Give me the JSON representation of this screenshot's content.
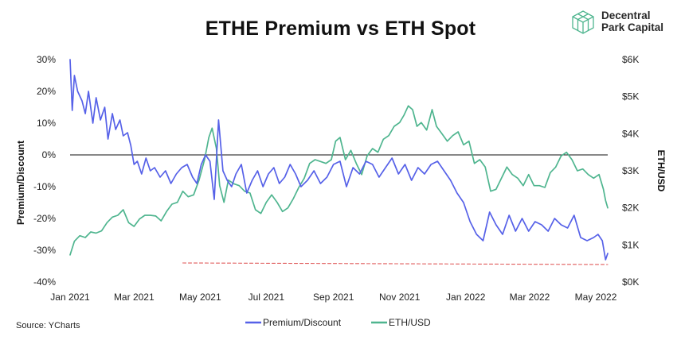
{
  "chart_data": {
    "type": "line",
    "title": "ETHE Premium vs ETH Spot",
    "ylabel_left": "Premium/Discount",
    "ylabel_right": "ETH/USD",
    "x_ticks": [
      "Jan 2021",
      "Mar 2021",
      "May 2021",
      "Jul 2021",
      "Sep 2021",
      "Nov 2021",
      "Jan 2022",
      "Mar 2022",
      "May 2022"
    ],
    "x_range": [
      "2021-01-01",
      "2022-05-12"
    ],
    "y_left_ticks": [
      "30%",
      "20%",
      "10%",
      "0%",
      "-10%",
      "-20%",
      "-30%",
      "-40%"
    ],
    "y_left_range": [
      -40,
      30
    ],
    "y_right_ticks": [
      "$6K",
      "$5K",
      "$4K",
      "$3K",
      "$2K",
      "$1K",
      "$0K"
    ],
    "y_right_range": [
      0,
      6000
    ],
    "grid": false,
    "zero_line": true,
    "legend_position": "bottom",
    "series": [
      {
        "name": "Premium/Discount",
        "axis": "left",
        "color": "#5661e8",
        "x": [
          "2021-01-01",
          "2021-01-03",
          "2021-01-05",
          "2021-01-08",
          "2021-01-12",
          "2021-01-15",
          "2021-01-18",
          "2021-01-22",
          "2021-01-25",
          "2021-01-29",
          "2021-02-02",
          "2021-02-05",
          "2021-02-09",
          "2021-02-12",
          "2021-02-16",
          "2021-02-19",
          "2021-02-23",
          "2021-02-26",
          "2021-03-01",
          "2021-03-04",
          "2021-03-08",
          "2021-03-12",
          "2021-03-16",
          "2021-03-20",
          "2021-03-25",
          "2021-03-30",
          "2021-04-04",
          "2021-04-09",
          "2021-04-14",
          "2021-04-19",
          "2021-04-24",
          "2021-04-28",
          "2021-05-02",
          "2021-05-06",
          "2021-05-10",
          "2021-05-14",
          "2021-05-18",
          "2021-05-22",
          "2021-05-26",
          "2021-05-30",
          "2021-06-03",
          "2021-06-08",
          "2021-06-13",
          "2021-06-18",
          "2021-06-23",
          "2021-06-28",
          "2021-07-03",
          "2021-07-08",
          "2021-07-13",
          "2021-07-18",
          "2021-07-23",
          "2021-07-28",
          "2021-08-02",
          "2021-08-08",
          "2021-08-14",
          "2021-08-20",
          "2021-08-26",
          "2021-09-01",
          "2021-09-07",
          "2021-09-13",
          "2021-09-19",
          "2021-09-25",
          "2021-10-01",
          "2021-10-07",
          "2021-10-13",
          "2021-10-19",
          "2021-10-25",
          "2021-10-31",
          "2021-11-06",
          "2021-11-12",
          "2021-11-18",
          "2021-11-24",
          "2021-11-30",
          "2021-12-06",
          "2021-12-12",
          "2021-12-18",
          "2021-12-24",
          "2021-12-30",
          "2022-01-05",
          "2022-01-11",
          "2022-01-17",
          "2022-01-23",
          "2022-01-29",
          "2022-02-04",
          "2022-02-10",
          "2022-02-16",
          "2022-02-22",
          "2022-02-28",
          "2022-03-06",
          "2022-03-12",
          "2022-03-18",
          "2022-03-24",
          "2022-03-30",
          "2022-04-05",
          "2022-04-11",
          "2022-04-17",
          "2022-04-23",
          "2022-04-29",
          "2022-05-03",
          "2022-05-07",
          "2022-05-10",
          "2022-05-12"
        ],
        "values": [
          30,
          14,
          25,
          20,
          17,
          13,
          20,
          10,
          18,
          11,
          15,
          5,
          13,
          8,
          11,
          6,
          7,
          3,
          -3,
          -2,
          -6,
          -1,
          -5,
          -4,
          -7,
          -5,
          -9,
          -6,
          -4,
          -3,
          -7,
          -9,
          -3,
          0,
          -2,
          -14,
          11,
          -5,
          -8,
          -10,
          -6,
          -3,
          -12,
          -8,
          -5,
          -10,
          -6,
          -4,
          -9,
          -7,
          -3,
          -6,
          -10,
          -8,
          -5,
          -9,
          -7,
          -3,
          -2,
          -10,
          -4,
          -6,
          -2,
          -3,
          -7,
          -4,
          -1,
          -6,
          -3,
          -8,
          -4,
          -6,
          -3,
          -2,
          -5,
          -8,
          -12,
          -15,
          -21,
          -25,
          -27,
          -18,
          -22,
          -25,
          -19,
          -24,
          -20,
          -24,
          -21,
          -22,
          -24,
          -20,
          -22,
          -23,
          -19,
          -26,
          -27,
          -26,
          -25,
          -27,
          -33,
          -31
        ]
      },
      {
        "name": "ETH/USD",
        "axis": "right",
        "color": "#4fb58f",
        "x": [
          "2021-01-01",
          "2021-01-05",
          "2021-01-10",
          "2021-01-15",
          "2021-01-20",
          "2021-01-25",
          "2021-01-30",
          "2021-02-04",
          "2021-02-09",
          "2021-02-14",
          "2021-02-19",
          "2021-02-24",
          "2021-03-01",
          "2021-03-06",
          "2021-03-11",
          "2021-03-16",
          "2021-03-21",
          "2021-03-26",
          "2021-03-31",
          "2021-04-05",
          "2021-04-10",
          "2021-04-15",
          "2021-04-20",
          "2021-04-25",
          "2021-04-30",
          "2021-05-05",
          "2021-05-09",
          "2021-05-12",
          "2021-05-16",
          "2021-05-19",
          "2021-05-23",
          "2021-05-27",
          "2021-06-01",
          "2021-06-06",
          "2021-06-11",
          "2021-06-16",
          "2021-06-21",
          "2021-06-26",
          "2021-07-01",
          "2021-07-06",
          "2021-07-11",
          "2021-07-16",
          "2021-07-21",
          "2021-07-26",
          "2021-07-31",
          "2021-08-05",
          "2021-08-10",
          "2021-08-15",
          "2021-08-20",
          "2021-08-25",
          "2021-08-30",
          "2021-09-03",
          "2021-09-07",
          "2021-09-12",
          "2021-09-17",
          "2021-09-22",
          "2021-09-27",
          "2021-10-02",
          "2021-10-07",
          "2021-10-12",
          "2021-10-17",
          "2021-10-22",
          "2021-10-27",
          "2021-11-01",
          "2021-11-05",
          "2021-11-09",
          "2021-11-13",
          "2021-11-17",
          "2021-11-21",
          "2021-11-26",
          "2021-12-01",
          "2021-12-05",
          "2021-12-10",
          "2021-12-15",
          "2021-12-20",
          "2021-12-25",
          "2021-12-30",
          "2022-01-04",
          "2022-01-09",
          "2022-01-14",
          "2022-01-19",
          "2022-01-24",
          "2022-01-29",
          "2022-02-03",
          "2022-02-08",
          "2022-02-13",
          "2022-02-18",
          "2022-02-23",
          "2022-02-28",
          "2022-03-05",
          "2022-03-10",
          "2022-03-15",
          "2022-03-20",
          "2022-03-25",
          "2022-03-30",
          "2022-04-04",
          "2022-04-09",
          "2022-04-14",
          "2022-04-19",
          "2022-04-24",
          "2022-04-29",
          "2022-05-04",
          "2022-05-08",
          "2022-05-10",
          "2022-05-12"
        ],
        "values": [
          730,
          1100,
          1250,
          1200,
          1350,
          1320,
          1380,
          1600,
          1750,
          1800,
          1950,
          1600,
          1500,
          1700,
          1800,
          1800,
          1780,
          1650,
          1900,
          2100,
          2150,
          2450,
          2300,
          2350,
          2750,
          3300,
          3900,
          4150,
          3600,
          2600,
          2150,
          2750,
          2650,
          2600,
          2450,
          2400,
          1950,
          1850,
          2150,
          2350,
          2150,
          1900,
          2000,
          2250,
          2550,
          2800,
          3200,
          3300,
          3250,
          3200,
          3300,
          3800,
          3900,
          3300,
          3550,
          3200,
          2900,
          3400,
          3600,
          3500,
          3850,
          3950,
          4200,
          4300,
          4500,
          4750,
          4650,
          4200,
          4300,
          4100,
          4650,
          4200,
          4000,
          3800,
          3950,
          4050,
          3700,
          3800,
          3200,
          3300,
          3100,
          2450,
          2500,
          2800,
          3100,
          2900,
          2800,
          2600,
          2900,
          2600,
          2600,
          2550,
          2950,
          3100,
          3400,
          3500,
          3300,
          3000,
          3050,
          2900,
          2800,
          2900,
          2500,
          2200,
          2000
        ]
      },
      {
        "name": "",
        "axis": "left",
        "color": "#e05a5a",
        "style": "dashed",
        "x": [
          "2021-04-15",
          "2022-05-12"
        ],
        "values": [
          -34,
          -34.5
        ]
      }
    ]
  },
  "source": "Source: YCharts",
  "logo": {
    "line1": "Decentral",
    "line2": "Park Capital"
  },
  "colors": {
    "premium": "#5661e8",
    "eth": "#4fb58f",
    "threshold": "#e05a5a",
    "logo": "#4fb58f"
  },
  "legend": [
    {
      "label": "Premium/Discount",
      "color": "#5661e8"
    },
    {
      "label": "ETH/USD",
      "color": "#4fb58f"
    }
  ]
}
